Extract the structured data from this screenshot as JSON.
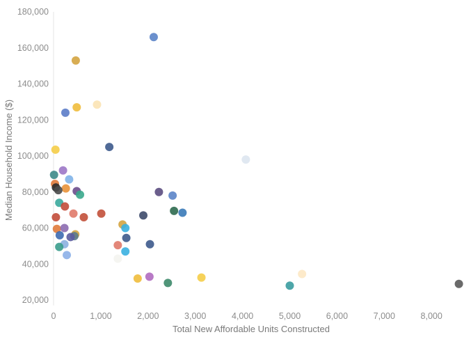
{
  "chart_data": {
    "type": "scatter",
    "xlabel": "Total New Affordable Units Constructed",
    "ylabel": "Median Household Income ($)",
    "xlim": [
      0,
      8800
    ],
    "ylim": [
      17000,
      180000
    ],
    "x_ticks": [
      0,
      1000,
      2000,
      3000,
      4000,
      5000,
      6000,
      7000,
      8000
    ],
    "x_tick_labels": [
      "0",
      "1,000",
      "2,000",
      "3,000",
      "4,000",
      "5,000",
      "6,000",
      "7,000",
      "8,000"
    ],
    "y_ticks": [
      20000,
      40000,
      60000,
      80000,
      100000,
      120000,
      140000,
      160000,
      180000
    ],
    "y_tick_labels": [
      "20,000",
      "40,000",
      "60,000",
      "80,000",
      "100,000",
      "120,000",
      "140,000",
      "160,000",
      "180,000"
    ],
    "grid": false,
    "points": [
      {
        "x": 2120,
        "y": 166000,
        "color": "#5b84c8"
      },
      {
        "x": 470,
        "y": 153000,
        "color": "#d4a440"
      },
      {
        "x": 920,
        "y": 128500,
        "color": "#fbe3b4"
      },
      {
        "x": 490,
        "y": 127000,
        "color": "#f0bc3c"
      },
      {
        "x": 250,
        "y": 124000,
        "color": "#5b7cc8"
      },
      {
        "x": 1180,
        "y": 105000,
        "color": "#3d5a8c"
      },
      {
        "x": 40,
        "y": 103500,
        "color": "#f5cd48"
      },
      {
        "x": 4070,
        "y": 98000,
        "color": "#dde6f0"
      },
      {
        "x": 200,
        "y": 92000,
        "color": "#9c77c6"
      },
      {
        "x": 10,
        "y": 89500,
        "color": "#3d8a8a"
      },
      {
        "x": 330,
        "y": 87000,
        "color": "#7fb3e8"
      },
      {
        "x": 30,
        "y": 84500,
        "color": "#e07a3a"
      },
      {
        "x": 50,
        "y": 82500,
        "color": "#2b2b2b"
      },
      {
        "x": 260,
        "y": 82000,
        "color": "#e8923a"
      },
      {
        "x": 100,
        "y": 81000,
        "color": "#4a4a4a"
      },
      {
        "x": 490,
        "y": 80500,
        "color": "#6b4c8c"
      },
      {
        "x": 2230,
        "y": 80000,
        "color": "#5b4c80"
      },
      {
        "x": 560,
        "y": 78500,
        "color": "#3aa88c"
      },
      {
        "x": 2520,
        "y": 78000,
        "color": "#5b84c8"
      },
      {
        "x": 120,
        "y": 74000,
        "color": "#3aa89c"
      },
      {
        "x": 240,
        "y": 72000,
        "color": "#c24c3a"
      },
      {
        "x": 2550,
        "y": 69500,
        "color": "#2d6a4f"
      },
      {
        "x": 2730,
        "y": 68500,
        "color": "#3a7ab8"
      },
      {
        "x": 1010,
        "y": 68000,
        "color": "#c2503a"
      },
      {
        "x": 420,
        "y": 68000,
        "color": "#e07a6a"
      },
      {
        "x": 1900,
        "y": 67000,
        "color": "#3d4a6a"
      },
      {
        "x": 50,
        "y": 66000,
        "color": "#c24c3a"
      },
      {
        "x": 640,
        "y": 66000,
        "color": "#c2503a"
      },
      {
        "x": 1460,
        "y": 62000,
        "color": "#d4a440"
      },
      {
        "x": 1520,
        "y": 60000,
        "color": "#3ab0e0"
      },
      {
        "x": 70,
        "y": 59500,
        "color": "#e07a3a"
      },
      {
        "x": 230,
        "y": 60000,
        "color": "#8c6cb0"
      },
      {
        "x": 130,
        "y": 56000,
        "color": "#3d6ab0"
      },
      {
        "x": 460,
        "y": 56500,
        "color": "#d4a440"
      },
      {
        "x": 440,
        "y": 55500,
        "color": "#5b7c8c"
      },
      {
        "x": 360,
        "y": 55000,
        "color": "#5b5ca0"
      },
      {
        "x": 1540,
        "y": 54500,
        "color": "#3d5a8c"
      },
      {
        "x": 230,
        "y": 51000,
        "color": "#8cb0e0"
      },
      {
        "x": 2040,
        "y": 51000,
        "color": "#3d5a8c"
      },
      {
        "x": 1360,
        "y": 50500,
        "color": "#e07a6a"
      },
      {
        "x": 120,
        "y": 49500,
        "color": "#3a9c8c"
      },
      {
        "x": 1520,
        "y": 47000,
        "color": "#3ab0e0"
      },
      {
        "x": 280,
        "y": 45000,
        "color": "#8cb0e8"
      },
      {
        "x": 1360,
        "y": 43000,
        "color": "#f4f4f0"
      },
      {
        "x": 5260,
        "y": 34500,
        "color": "#fde8c4"
      },
      {
        "x": 2030,
        "y": 33000,
        "color": "#b06cc0"
      },
      {
        "x": 1780,
        "y": 32000,
        "color": "#f0bc3c"
      },
      {
        "x": 3130,
        "y": 32500,
        "color": "#f5cd48"
      },
      {
        "x": 2420,
        "y": 29500,
        "color": "#3d8a6a"
      },
      {
        "x": 5000,
        "y": 28000,
        "color": "#3a9ca0"
      },
      {
        "x": 8580,
        "y": 29000,
        "color": "#5a5a5a"
      }
    ]
  }
}
